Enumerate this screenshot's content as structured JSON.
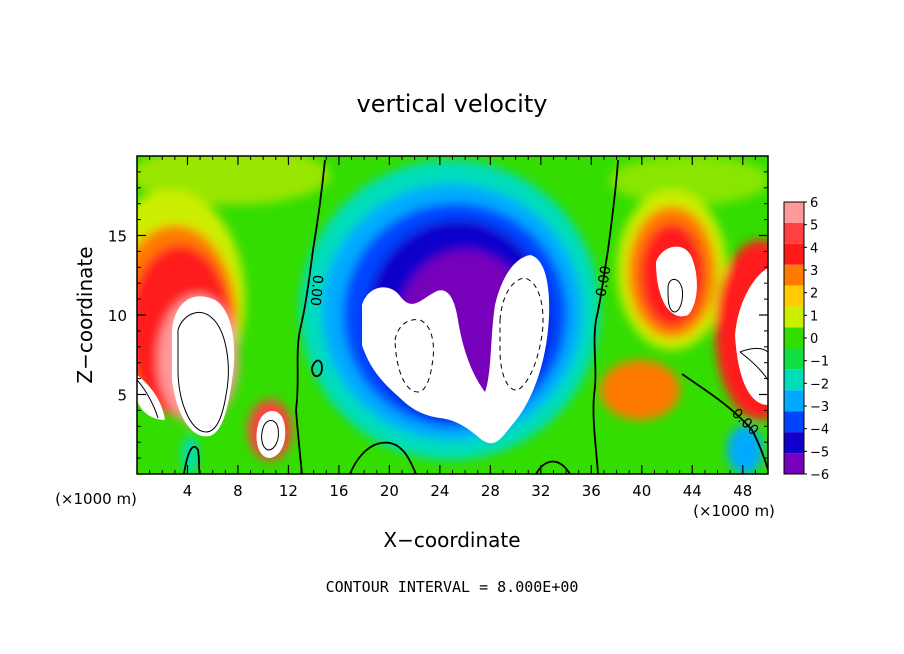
{
  "chart_data": {
    "type": "heatmap",
    "title": "vertical velocity",
    "xlabel": "X−coordinate",
    "ylabel": "Z−coordinate",
    "x_unit_left": "(×1000 m)",
    "x_unit_right": "(×1000 m)",
    "xlim": [
      0,
      50
    ],
    "ylim": [
      0,
      20
    ],
    "x_ticks": [
      4,
      8,
      12,
      16,
      20,
      24,
      28,
      32,
      36,
      40,
      44,
      48
    ],
    "y_ticks": [
      5,
      10,
      15
    ],
    "colorbar": {
      "levels": [
        6,
        5,
        4,
        3,
        2,
        1,
        0,
        -1,
        -2,
        -3,
        -4,
        -5,
        -6
      ],
      "labels": [
        "6",
        "5",
        "4",
        "3",
        "2",
        "1",
        "0",
        "−1",
        "−2",
        "−3",
        "−4",
        "−5",
        "−6"
      ],
      "range": [
        -6,
        6
      ],
      "colors": [
        "#ff9a9a",
        "#ff4040",
        "#ff1a1a",
        "#ff7a00",
        "#ffcc00",
        "#ccee00",
        "#33dd00",
        "#11dd44",
        "#00ddbb",
        "#00aaff",
        "#0044ff",
        "#1100cc",
        "#7700bb"
      ]
    },
    "above_range_color": "#ffffff",
    "contour_labels": [
      "0.00",
      "0.00",
      "0.00"
    ],
    "contour_interval_text": "CONTOUR INTERVAL = 8.000E+00"
  }
}
